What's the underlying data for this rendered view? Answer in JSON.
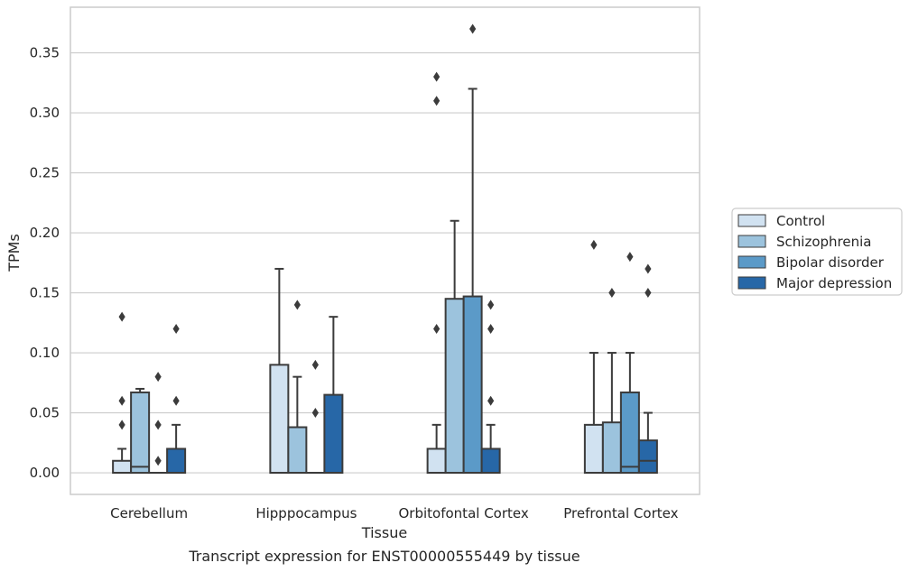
{
  "chart_data": {
    "type": "box",
    "title": "",
    "caption": "Transcript expression for ENST00000555449 by tissue",
    "xlabel": "Tissue",
    "ylabel": "TPMs",
    "ylim": [
      -0.018,
      0.388
    ],
    "yticks": [
      "0.00",
      "0.05",
      "0.10",
      "0.15",
      "0.20",
      "0.25",
      "0.30",
      "0.35"
    ],
    "grid": true,
    "legend_position": "right",
    "categories": [
      "Cerebellum",
      "Hipppocampus",
      "Orbitofontal Cortex",
      "Prefrontal Cortex"
    ],
    "series": [
      {
        "name": "Control",
        "color": "#d1e2f1",
        "boxes": [
          {
            "q1": 0.0,
            "median": 0.0,
            "q3": 0.01,
            "whisker_low": 0.0,
            "whisker_high": 0.02,
            "outliers": [
              0.04,
              0.06,
              0.13
            ]
          },
          {
            "q1": 0.0,
            "median": 0.0,
            "q3": 0.09,
            "whisker_low": 0.0,
            "whisker_high": 0.17,
            "outliers": []
          },
          {
            "q1": 0.0,
            "median": 0.0,
            "q3": 0.02,
            "whisker_low": 0.0,
            "whisker_high": 0.04,
            "outliers": [
              0.12,
              0.31,
              0.33
            ]
          },
          {
            "q1": 0.0,
            "median": 0.0,
            "q3": 0.04,
            "whisker_low": 0.0,
            "whisker_high": 0.1,
            "outliers": [
              0.19
            ]
          }
        ]
      },
      {
        "name": "Schizophrenia",
        "color": "#9cc3dd",
        "boxes": [
          {
            "q1": 0.0,
            "median": 0.005,
            "q3": 0.067,
            "whisker_low": 0.0,
            "whisker_high": 0.07,
            "outliers": []
          },
          {
            "q1": 0.0,
            "median": 0.0,
            "q3": 0.038,
            "whisker_low": 0.0,
            "whisker_high": 0.08,
            "outliers": [
              0.14
            ]
          },
          {
            "q1": 0.0,
            "median": 0.0,
            "q3": 0.145,
            "whisker_low": 0.0,
            "whisker_high": 0.21,
            "outliers": []
          },
          {
            "q1": 0.0,
            "median": 0.0,
            "q3": 0.042,
            "whisker_low": 0.0,
            "whisker_high": 0.1,
            "outliers": [
              0.15
            ]
          }
        ]
      },
      {
        "name": "Bipolar disorder",
        "color": "#5b9ac8",
        "boxes": [
          {
            "q1": 0.0,
            "median": 0.0,
            "q3": 0.0,
            "whisker_low": 0.0,
            "whisker_high": 0.0,
            "outliers": [
              0.01,
              0.04,
              0.08
            ]
          },
          {
            "q1": 0.0,
            "median": 0.0,
            "q3": 0.0,
            "whisker_low": 0.0,
            "whisker_high": 0.0,
            "outliers": [
              0.05,
              0.09
            ]
          },
          {
            "q1": 0.0,
            "median": 0.0,
            "q3": 0.147,
            "whisker_low": 0.0,
            "whisker_high": 0.32,
            "outliers": [
              0.37
            ]
          },
          {
            "q1": 0.0,
            "median": 0.005,
            "q3": 0.067,
            "whisker_low": 0.0,
            "whisker_high": 0.1,
            "outliers": [
              0.18
            ]
          }
        ]
      },
      {
        "name": "Major depression",
        "color": "#2767a7",
        "boxes": [
          {
            "q1": 0.0,
            "median": 0.0,
            "q3": 0.02,
            "whisker_low": 0.0,
            "whisker_high": 0.04,
            "outliers": [
              0.06,
              0.12
            ]
          },
          {
            "q1": 0.0,
            "median": 0.0,
            "q3": 0.065,
            "whisker_low": 0.0,
            "whisker_high": 0.13,
            "outliers": []
          },
          {
            "q1": 0.0,
            "median": 0.0,
            "q3": 0.02,
            "whisker_low": 0.0,
            "whisker_high": 0.04,
            "outliers": [
              0.06,
              0.12,
              0.14
            ]
          },
          {
            "q1": 0.0,
            "median": 0.01,
            "q3": 0.027,
            "whisker_low": 0.0,
            "whisker_high": 0.05,
            "outliers": [
              0.15,
              0.17
            ]
          }
        ]
      }
    ]
  }
}
